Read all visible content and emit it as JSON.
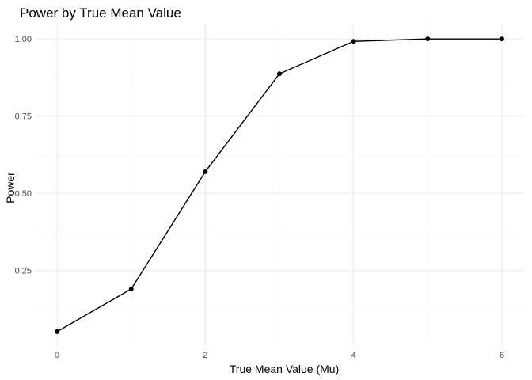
{
  "chart_data": {
    "type": "line",
    "title": "Power by True Mean Value",
    "xlabel": "True Mean Value (Mu)",
    "ylabel": "Power",
    "x": [
      0,
      1,
      2,
      3,
      4,
      5,
      6
    ],
    "series": [
      {
        "values": [
          0.052,
          0.19,
          0.57,
          0.887,
          0.992,
          1.0,
          1.0
        ]
      }
    ],
    "xlim": [
      -0.3,
      6.3
    ],
    "ylim": [
      0.0055,
      1.0465
    ],
    "x_ticks": [
      {
        "value": 0,
        "label": "0"
      },
      {
        "value": 2,
        "label": "2"
      },
      {
        "value": 4,
        "label": "4"
      },
      {
        "value": 6,
        "label": "6"
      }
    ],
    "y_ticks": [
      {
        "value": 0.25,
        "label": "0.25"
      },
      {
        "value": 0.5,
        "label": "0.50"
      },
      {
        "value": 0.75,
        "label": "0.75"
      },
      {
        "value": 1.0,
        "label": "1.00"
      }
    ],
    "x_minor_grid": [
      1,
      3,
      5
    ],
    "y_minor_grid": [
      0.125,
      0.375,
      0.625,
      0.875
    ],
    "grid": true,
    "legend": "none",
    "colors": {
      "line": "#000000",
      "point": "#000000",
      "grid_major": "#ebebeb",
      "grid_minor": "#f4f4f4",
      "tick_text": "#4d4d4d"
    }
  }
}
